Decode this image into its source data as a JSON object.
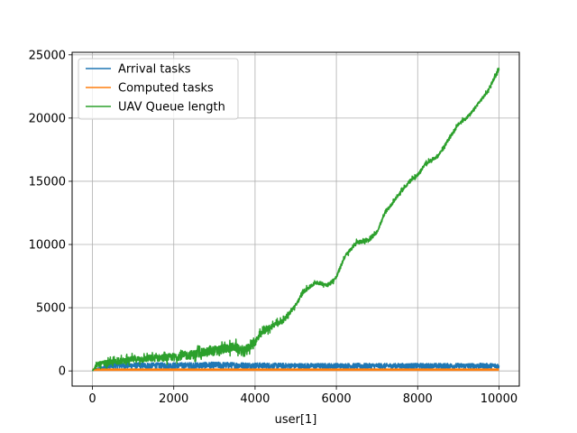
{
  "chart_data": {
    "type": "line",
    "title": "",
    "xlabel": "user[1]",
    "ylabel": "",
    "xlim": [
      -500,
      10500
    ],
    "ylim": [
      -1200,
      25200
    ],
    "xticks": [
      0,
      2000,
      4000,
      6000,
      8000,
      10000
    ],
    "yticks": [
      0,
      5000,
      10000,
      15000,
      20000,
      25000
    ],
    "grid": true,
    "legend_position": "top-left",
    "series": [
      {
        "name": "Arrival tasks",
        "color": "#1f77b4",
        "style": "noisy-band",
        "x": [
          0,
          500,
          1000,
          2000,
          3000,
          4000,
          5000,
          6000,
          7000,
          8000,
          9000,
          10000
        ],
        "low": [
          0,
          150,
          150,
          150,
          150,
          150,
          150,
          150,
          150,
          150,
          150,
          150
        ],
        "high": [
          100,
          650,
          650,
          650,
          700,
          650,
          600,
          600,
          600,
          600,
          600,
          600
        ]
      },
      {
        "name": "Computed tasks",
        "color": "#ff7f0e",
        "style": "band",
        "x": [
          0,
          10000
        ],
        "low": [
          0,
          0
        ],
        "high": [
          200,
          200
        ]
      },
      {
        "name": "UAV Queue length",
        "color": "#2ca02c",
        "style": "noisy-line",
        "x": [
          0,
          100,
          500,
          1000,
          1500,
          2000,
          2500,
          3000,
          3500,
          3700,
          4000,
          4200,
          4500,
          4700,
          5000,
          5200,
          5500,
          5800,
          6000,
          6200,
          6500,
          6800,
          7000,
          7200,
          7500,
          7800,
          8000,
          8200,
          8500,
          8800,
          9000,
          9300,
          9500,
          9700,
          10000
        ],
        "values": [
          0,
          500,
          700,
          900,
          1000,
          1100,
          1300,
          1600,
          1900,
          1500,
          2300,
          3100,
          3700,
          4000,
          5200,
          6300,
          7000,
          6800,
          7400,
          9000,
          10200,
          10300,
          11000,
          12500,
          13800,
          15000,
          15500,
          16400,
          17000,
          18500,
          19500,
          20300,
          21200,
          22000,
          23900
        ],
        "noise": [
          0,
          350,
          450,
          500,
          550,
          600,
          700,
          750,
          700,
          700,
          650,
          500,
          450,
          350,
          300,
          300,
          280,
          280,
          300,
          300,
          280,
          250,
          250,
          250,
          250,
          250,
          250,
          250,
          250,
          250,
          250,
          250,
          250,
          250,
          250
        ]
      }
    ]
  }
}
